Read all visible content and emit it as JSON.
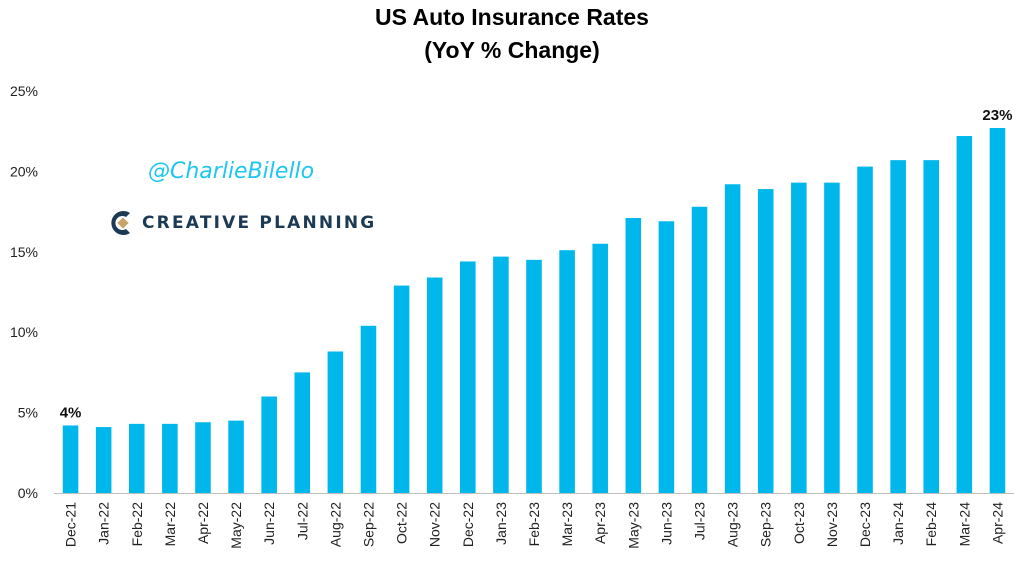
{
  "title_line1": "US Auto Insurance Rates",
  "title_line2": "(YoY % Change)",
  "watermark": "@CharlieBilello",
  "logo_text": "CREATIVE PLANNING",
  "colors": {
    "bar": "#00b7eb",
    "watermark": "#1ec6f0",
    "logo_navy": "#1d3a55",
    "logo_tan": "#c8a46a"
  },
  "chart_data": {
    "type": "bar",
    "title": "US Auto Insurance Rates (YoY % Change)",
    "xlabel": "",
    "ylabel": "",
    "ylim": [
      0,
      25
    ],
    "yticks": [
      0,
      5,
      10,
      15,
      20,
      25
    ],
    "ytick_labels": [
      "0%",
      "5%",
      "10%",
      "15%",
      "20%",
      "25%"
    ],
    "categories": [
      "Dec-21",
      "Jan-22",
      "Feb-22",
      "Mar-22",
      "Apr-22",
      "May-22",
      "Jun-22",
      "Jul-22",
      "Aug-22",
      "Sep-22",
      "Oct-22",
      "Nov-22",
      "Dec-22",
      "Jan-23",
      "Feb-23",
      "Mar-23",
      "Apr-23",
      "May-23",
      "Jun-23",
      "Jul-23",
      "Aug-23",
      "Sep-23",
      "Oct-23",
      "Nov-23",
      "Dec-23",
      "Jan-24",
      "Feb-24",
      "Mar-24",
      "Apr-24"
    ],
    "values": [
      4.2,
      4.1,
      4.3,
      4.3,
      4.4,
      4.5,
      6.0,
      7.5,
      8.8,
      10.4,
      12.9,
      13.4,
      14.4,
      14.7,
      14.5,
      15.1,
      15.5,
      17.1,
      16.9,
      17.8,
      19.2,
      18.9,
      19.3,
      19.3,
      20.3,
      20.7,
      20.7,
      22.2,
      22.7
    ],
    "data_labels": [
      {
        "category": "Dec-21",
        "label": "4%"
      },
      {
        "category": "Apr-24",
        "label": "23%"
      }
    ],
    "grid": false,
    "legend": "none"
  }
}
